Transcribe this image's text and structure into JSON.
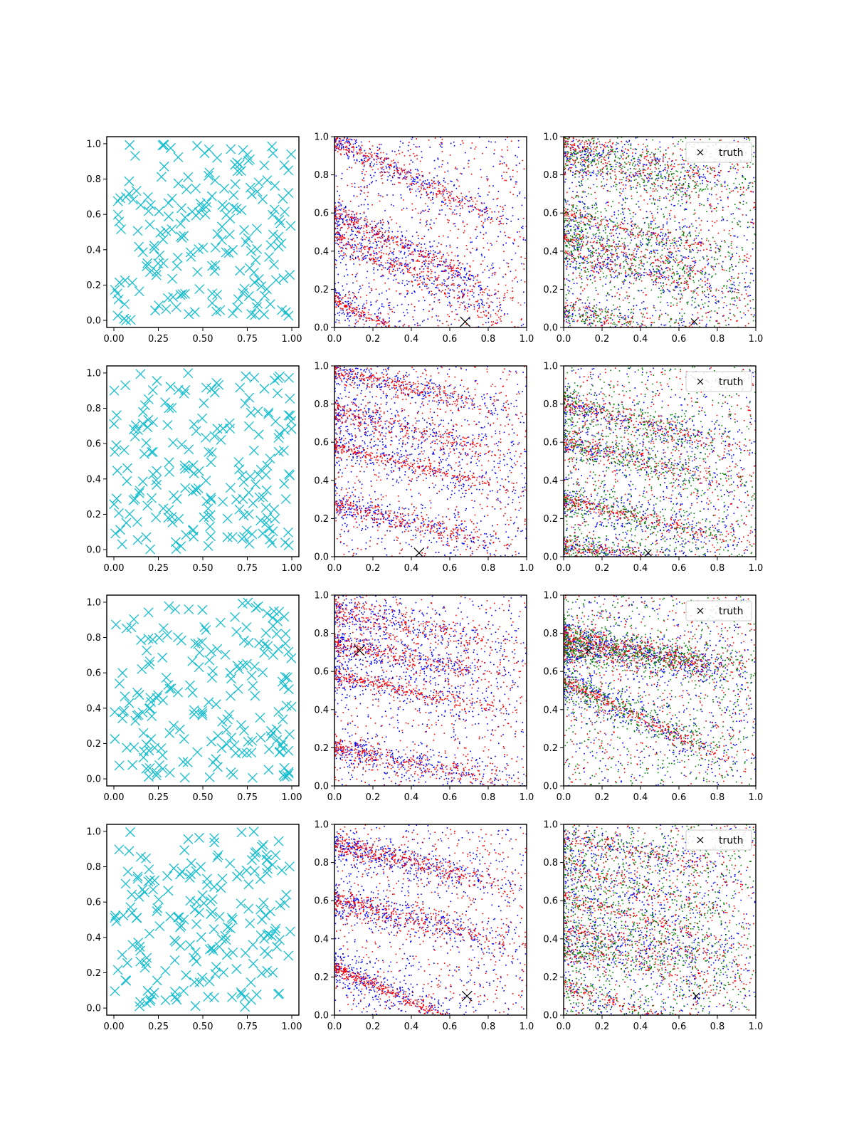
{
  "figure": {
    "description": "4x3 grid of scatter subplots"
  },
  "legend": {
    "truth_label": "truth",
    "location": "upper-right"
  },
  "chart_data": [
    {
      "row": 0,
      "panels": [
        {
          "type": "scatter",
          "kind": "cyan-x",
          "xlim": [
            -0.04,
            1.04
          ],
          "ylim": [
            -0.04,
            1.04
          ],
          "xticks": [
            "0.00",
            "0.25",
            "0.50",
            "0.75",
            "1.00"
          ],
          "yticks": [
            "0.0",
            "0.2",
            "0.4",
            "0.6",
            "0.8",
            "1.0"
          ],
          "n_points": 200,
          "seed": 11,
          "color": "#17becf"
        },
        {
          "type": "scatter",
          "kind": "dense-2",
          "xlim": [
            0,
            1
          ],
          "ylim": [
            0,
            1
          ],
          "xticks": [
            "0.0",
            "0.2",
            "0.4",
            "0.6",
            "0.8",
            "1.0"
          ],
          "yticks": [
            "0.0",
            "0.2",
            "0.4",
            "0.6",
            "0.8",
            "1.0"
          ],
          "colors": [
            "#0000ff",
            "#ff0000"
          ],
          "truth": [
            0.68,
            0.03
          ],
          "bands": [
            [
              0.98,
              0.6
            ],
            [
              0.48,
              0.6
            ],
            [
              0.14,
              0.6
            ],
            [
              0.6,
              0.6
            ]
          ],
          "seed": 21
        },
        {
          "type": "scatter",
          "kind": "dense-3",
          "xlim": [
            0,
            1
          ],
          "ylim": [
            0,
            1
          ],
          "xticks": [
            "0.0",
            "0.2",
            "0.4",
            "0.6",
            "0.8",
            "1.0"
          ],
          "yticks": [
            "0.0",
            "0.2",
            "0.4",
            "0.6",
            "0.8",
            "1.0"
          ],
          "colors": [
            "#0000ff",
            "#ff0000",
            "#008000"
          ],
          "truth": [
            0.68,
            0.03
          ],
          "legend": true,
          "bands": [
            [
              0.98,
              0.3
            ],
            [
              0.88,
              0.3
            ],
            [
              0.48,
              0.3
            ],
            [
              0.38,
              0.3
            ],
            [
              0.1,
              0.3
            ],
            [
              0.6,
              0.3
            ]
          ],
          "seed": 31
        }
      ]
    },
    {
      "row": 1,
      "panels": [
        {
          "type": "scatter",
          "kind": "cyan-x",
          "xlim": [
            -0.04,
            1.04
          ],
          "ylim": [
            -0.04,
            1.04
          ],
          "xticks": [
            "0.00",
            "0.25",
            "0.50",
            "0.75",
            "1.00"
          ],
          "yticks": [
            "0.0",
            "0.2",
            "0.4",
            "0.6",
            "0.8",
            "1.0"
          ],
          "n_points": 200,
          "seed": 12,
          "color": "#17becf"
        },
        {
          "type": "scatter",
          "kind": "dense-2",
          "xlim": [
            0,
            1
          ],
          "ylim": [
            0,
            1
          ],
          "xticks": [
            "0.0",
            "0.2",
            "0.4",
            "0.6",
            "0.8",
            "1.0"
          ],
          "yticks": [
            "0.0",
            "0.2",
            "0.4",
            "0.6",
            "0.8",
            "1.0"
          ],
          "colors": [
            "#0000ff",
            "#ff0000"
          ],
          "truth": [
            0.44,
            0.02
          ],
          "bands": [
            [
              0.98,
              0.3
            ],
            [
              0.76,
              0.3
            ],
            [
              0.58,
              0.3
            ],
            [
              0.28,
              0.3
            ]
          ],
          "seed": 22
        },
        {
          "type": "scatter",
          "kind": "dense-3",
          "xlim": [
            0,
            1
          ],
          "ylim": [
            0,
            1
          ],
          "xticks": [
            "0.0",
            "0.2",
            "0.4",
            "0.6",
            "0.8",
            "1.0"
          ],
          "yticks": [
            "0.0",
            "0.2",
            "0.4",
            "0.6",
            "0.8",
            "1.0"
          ],
          "colors": [
            "#0000ff",
            "#ff0000",
            "#008000"
          ],
          "truth": [
            0.44,
            0.02
          ],
          "legend": true,
          "bands": [
            [
              0.8,
              0.3
            ],
            [
              0.6,
              0.3
            ],
            [
              0.3,
              0.3
            ],
            [
              0.06,
              0.2
            ]
          ],
          "seed": 32
        }
      ]
    },
    {
      "row": 2,
      "panels": [
        {
          "type": "scatter",
          "kind": "cyan-x",
          "xlim": [
            -0.04,
            1.04
          ],
          "ylim": [
            -0.04,
            1.04
          ],
          "xticks": [
            "0.00",
            "0.25",
            "0.50",
            "0.75",
            "1.00"
          ],
          "yticks": [
            "0.0",
            "0.2",
            "0.4",
            "0.6",
            "0.8",
            "1.0"
          ],
          "n_points": 200,
          "seed": 13,
          "color": "#17becf"
        },
        {
          "type": "scatter",
          "kind": "dense-2",
          "xlim": [
            0,
            1
          ],
          "ylim": [
            0,
            1
          ],
          "xticks": [
            "0.0",
            "0.2",
            "0.4",
            "0.6",
            "0.8",
            "1.0"
          ],
          "yticks": [
            "0.0",
            "0.2",
            "0.4",
            "0.6",
            "0.8",
            "1.0"
          ],
          "colors": [
            "#0000ff",
            "#ff0000"
          ],
          "truth": [
            0.13,
            0.71
          ],
          "bands": [
            [
              0.75,
              0.25
            ],
            [
              0.92,
              0.25
            ],
            [
              0.58,
              0.25
            ],
            [
              0.2,
              0.25
            ]
          ],
          "seed": 23
        },
        {
          "type": "scatter",
          "kind": "dense-3",
          "xlim": [
            0,
            1
          ],
          "ylim": [
            0,
            1
          ],
          "xticks": [
            "0.0",
            "0.2",
            "0.4",
            "0.6",
            "0.8",
            "1.0"
          ],
          "yticks": [
            "0.0",
            "0.2",
            "0.4",
            "0.6",
            "0.8",
            "1.0"
          ],
          "colors": [
            "#0000ff",
            "#ff0000",
            "#008000"
          ],
          "truth": [
            0.13,
            0.71
          ],
          "legend": true,
          "bands": [
            [
              0.8,
              0.3
            ],
            [
              0.72,
              0.1
            ],
            [
              0.55,
              0.6
            ]
          ],
          "seed": 33
        }
      ]
    },
    {
      "row": 3,
      "panels": [
        {
          "type": "scatter",
          "kind": "cyan-x",
          "xlim": [
            -0.04,
            1.04
          ],
          "ylim": [
            -0.04,
            1.04
          ],
          "xticks": [
            "0.00",
            "0.25",
            "0.50",
            "0.75",
            "1.00"
          ],
          "yticks": [
            "0.0",
            "0.2",
            "0.4",
            "0.6",
            "0.8",
            "1.0"
          ],
          "n_points": 200,
          "seed": 14,
          "color": "#17becf"
        },
        {
          "type": "scatter",
          "kind": "dense-2",
          "xlim": [
            0,
            1
          ],
          "ylim": [
            0,
            1
          ],
          "xticks": [
            "0.0",
            "0.2",
            "0.4",
            "0.6",
            "0.8",
            "1.0"
          ],
          "yticks": [
            "0.0",
            "0.2",
            "0.4",
            "0.6",
            "0.8",
            "1.0"
          ],
          "colors": [
            "#0000ff",
            "#ff0000"
          ],
          "truth": [
            0.69,
            0.1
          ],
          "bands": [
            [
              0.9,
              0.3
            ],
            [
              0.6,
              0.3
            ],
            [
              0.25,
              0.55
            ]
          ],
          "seed": 24
        },
        {
          "type": "scatter",
          "kind": "dense-3",
          "xlim": [
            0,
            1
          ],
          "ylim": [
            0,
            1
          ],
          "xticks": [
            "0.0",
            "0.2",
            "0.4",
            "0.6",
            "0.8",
            "1.0"
          ],
          "yticks": [
            "0.0",
            "0.2",
            "0.4",
            "0.6",
            "0.8",
            "1.0"
          ],
          "colors": [
            "#0000ff",
            "#ff0000",
            "#008000"
          ],
          "truth": [
            0.69,
            0.1
          ],
          "legend": true,
          "bands": [
            [
              0.93,
              0.25
            ],
            [
              0.8,
              0.4
            ],
            [
              0.62,
              0.35
            ],
            [
              0.46,
              0.25
            ],
            [
              0.35,
              0.25
            ],
            [
              0.15,
              0.4
            ]
          ],
          "seed": 34
        }
      ]
    }
  ]
}
